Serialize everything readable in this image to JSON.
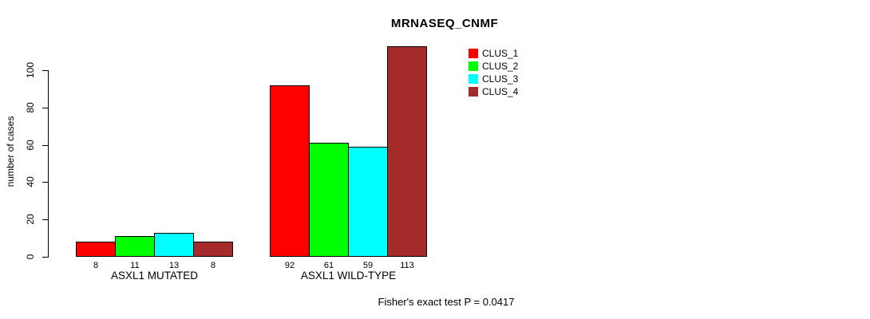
{
  "chart_data": {
    "type": "bar",
    "title": "MRNASEQ_CNMF",
    "ylabel": "number of cases",
    "xlabel": "",
    "categories": [
      "ASXL1 MUTATED",
      "ASXL1 WILD-TYPE"
    ],
    "series": [
      {
        "name": "CLUS_1",
        "color": "#ff0000",
        "values": [
          8,
          92
        ]
      },
      {
        "name": "CLUS_2",
        "color": "#00ff00",
        "values": [
          11,
          61
        ]
      },
      {
        "name": "CLUS_3",
        "color": "#00ffff",
        "values": [
          13,
          59
        ]
      },
      {
        "name": "CLUS_4",
        "color": "#a52a2a",
        "values": [
          8,
          113
        ]
      }
    ],
    "yticks": [
      0,
      20,
      40,
      60,
      80,
      100
    ],
    "ylim": [
      0,
      113
    ],
    "grid": false,
    "bar_value_labels_shown": true,
    "legend_position": "top-right",
    "annotation": "Fisher's exact test P = 0.0417"
  }
}
